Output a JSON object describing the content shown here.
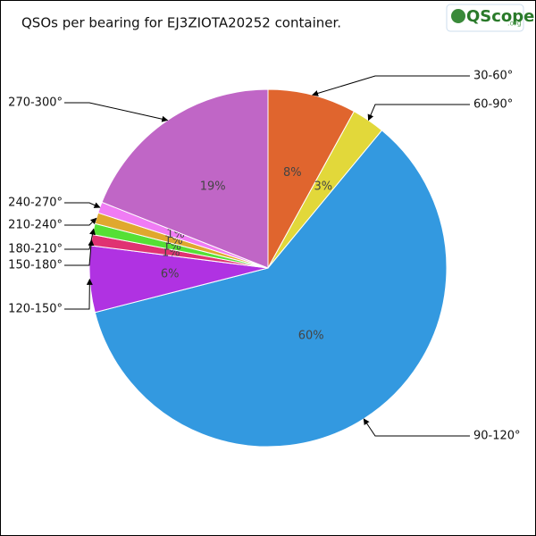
{
  "chart_data": {
    "type": "pie",
    "title": "QSOs per bearing for EJ3ZIOTA20252 container.",
    "logo": "QScope",
    "logo_suffix": ".org",
    "categories": [
      "30-60°",
      "60-90°",
      "90-120°",
      "120-150°",
      "150-180°",
      "180-210°",
      "210-240°",
      "240-270°",
      "270-300°"
    ],
    "values": [
      8,
      3,
      60,
      6,
      1,
      1,
      1,
      1,
      19
    ],
    "value_labels": [
      "8%",
      "3%",
      "60%",
      "6%",
      "1%",
      "1%",
      "1%",
      "1%",
      "19%"
    ],
    "colors": [
      "#e0652e",
      "#e2d83a",
      "#3399e0",
      "#b032e2",
      "#e03272",
      "#55e035",
      "#e0a82e",
      "#f07cf4",
      "#c066c6"
    ]
  }
}
